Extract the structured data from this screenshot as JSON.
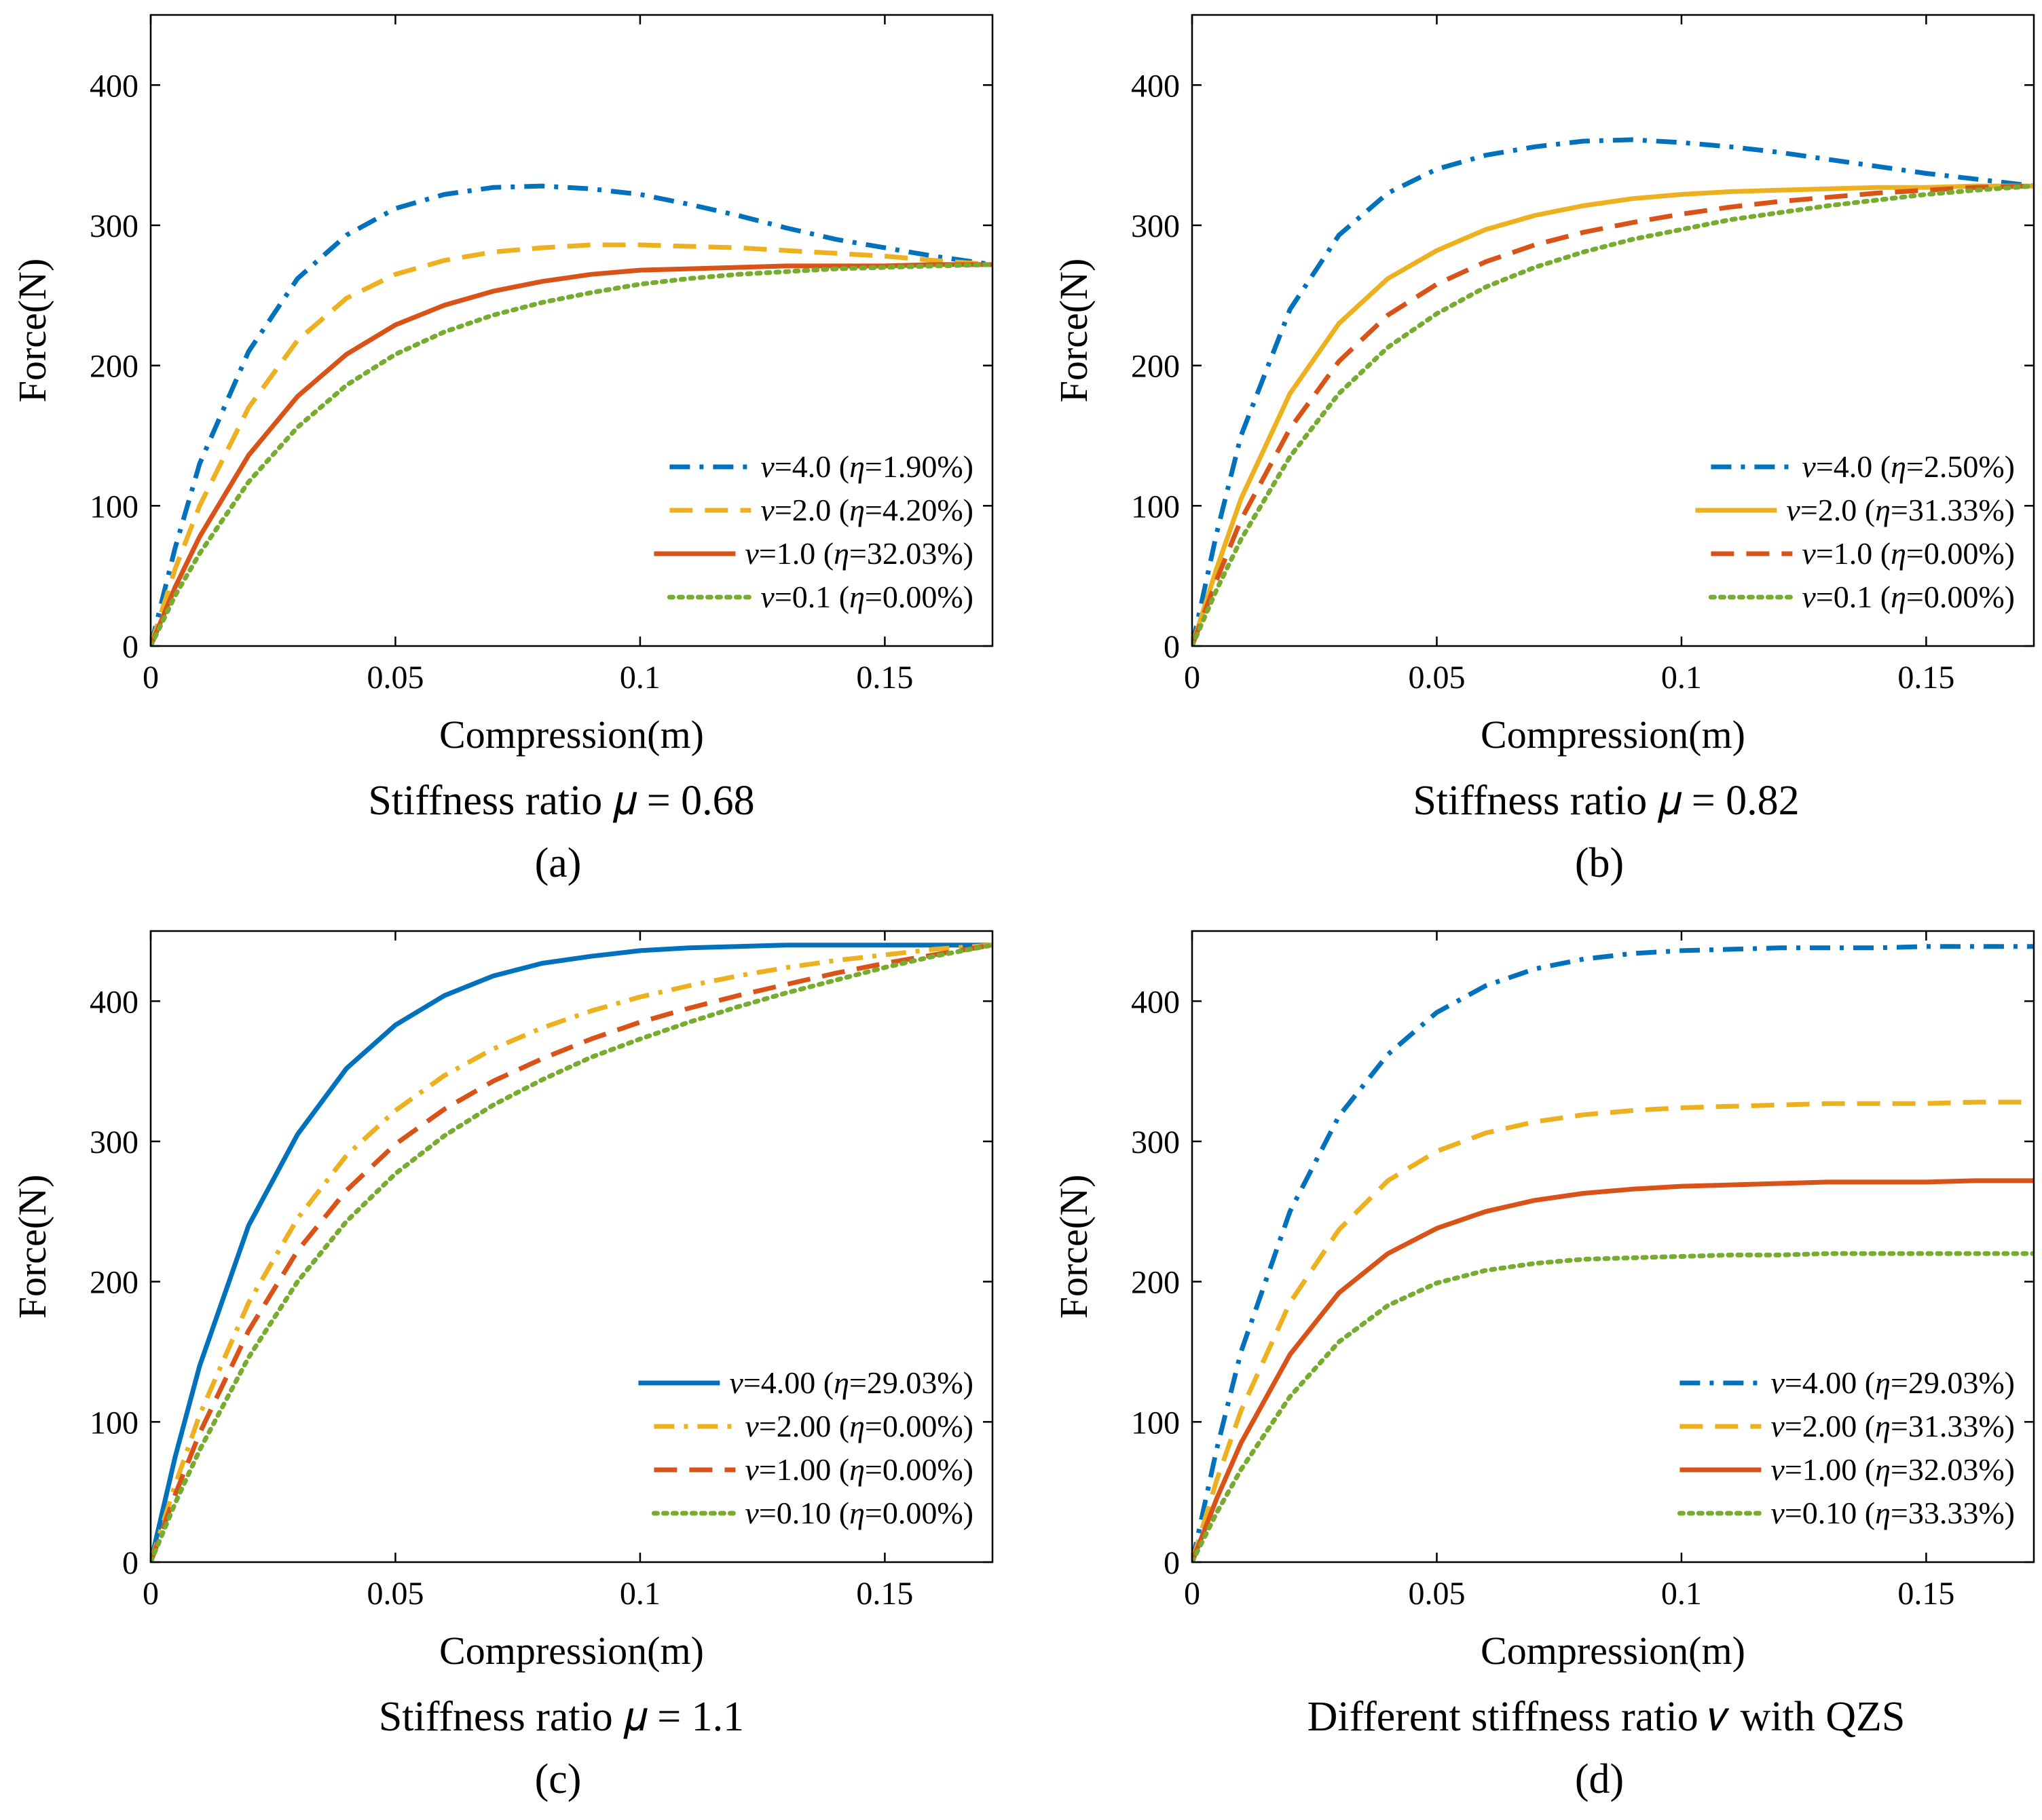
{
  "figure": {
    "axis_labels": {
      "x_prefix": "Compression(",
      "x_var": "m",
      "x_suffix": ")",
      "y_prefix": "Force(",
      "y_var": "N",
      "y_suffix": ")"
    }
  },
  "chart_data": [
    {
      "id": "a",
      "type": "line",
      "panel_label": "(a)",
      "caption": "Stiffness ratio 𝜇 = 0.68",
      "xlabel": "Compression(m)",
      "ylabel": "Force(N)",
      "xlim": [
        0,
        0.172
      ],
      "ylim": [
        0,
        450
      ],
      "xticks": [
        0,
        0.05,
        0.1,
        0.15
      ],
      "xtick_labels": [
        "0",
        "0.05",
        "0.1",
        "0.15"
      ],
      "yticks": [
        0,
        100,
        200,
        300,
        400
      ],
      "ytick_labels": [
        "0",
        "100",
        "200",
        "300",
        "400"
      ],
      "legend_position": "bottom-right",
      "series": [
        {
          "name": "ν=4.0 (η=1.90%)",
          "var": "ν",
          "val": "=4.0 (",
          "eta": "η",
          "eta_val": "=1.90%)",
          "color": "#0072BD",
          "style": "dashdot",
          "x": [
            0,
            0.005,
            0.01,
            0.02,
            0.03,
            0.04,
            0.05,
            0.06,
            0.07,
            0.08,
            0.09,
            0.1,
            0.11,
            0.12,
            0.13,
            0.14,
            0.15,
            0.16,
            0.172
          ],
          "y": [
            0,
            70,
            130,
            210,
            262,
            293,
            312,
            322,
            327,
            328,
            326,
            322,
            315,
            307,
            298,
            290,
            284,
            278,
            272
          ]
        },
        {
          "name": "ν=2.0 (η=4.20%)",
          "var": "ν",
          "val": "=2.0 (",
          "eta": "η",
          "eta_val": "=4.20%)",
          "color": "#EDB120",
          "style": "dashed",
          "x": [
            0,
            0.005,
            0.01,
            0.02,
            0.03,
            0.04,
            0.05,
            0.06,
            0.07,
            0.08,
            0.09,
            0.1,
            0.11,
            0.12,
            0.13,
            0.14,
            0.15,
            0.16,
            0.172
          ],
          "y": [
            0,
            55,
            100,
            170,
            218,
            248,
            265,
            275,
            281,
            284,
            286,
            286,
            285,
            284,
            282,
            280,
            278,
            275,
            272
          ]
        },
        {
          "name": "ν=1.0 (η=32.03%)",
          "var": "ν",
          "val": "=1.0 (",
          "eta": "η",
          "eta_val": "=32.03%)",
          "color": "#D95319",
          "style": "solid",
          "x": [
            0,
            0.005,
            0.01,
            0.02,
            0.03,
            0.04,
            0.05,
            0.06,
            0.07,
            0.08,
            0.09,
            0.1,
            0.11,
            0.12,
            0.13,
            0.14,
            0.15,
            0.16,
            0.172
          ],
          "y": [
            0,
            42,
            78,
            136,
            178,
            208,
            229,
            243,
            253,
            260,
            265,
            268,
            269,
            270,
            271,
            271,
            271,
            272,
            272
          ]
        },
        {
          "name": "ν=0.1 (η=0.00%)",
          "var": "ν",
          "val": "=0.1 (",
          "eta": "η",
          "eta_val": "=0.00%)",
          "color": "#77AC30",
          "style": "dotted",
          "x": [
            0,
            0.005,
            0.01,
            0.02,
            0.03,
            0.04,
            0.05,
            0.06,
            0.07,
            0.08,
            0.09,
            0.1,
            0.11,
            0.12,
            0.13,
            0.14,
            0.15,
            0.16,
            0.172
          ],
          "y": [
            0,
            36,
            66,
            117,
            156,
            186,
            208,
            224,
            236,
            245,
            252,
            258,
            262,
            265,
            267,
            269,
            270,
            271,
            272
          ]
        }
      ]
    },
    {
      "id": "b",
      "type": "line",
      "panel_label": "(b)",
      "caption": "Stiffness ratio 𝜇 = 0.82",
      "xlabel": "Compression(m)",
      "ylabel": "Force(N)",
      "xlim": [
        0,
        0.172
      ],
      "ylim": [
        0,
        450
      ],
      "xticks": [
        0,
        0.05,
        0.1,
        0.15
      ],
      "xtick_labels": [
        "0",
        "0.05",
        "0.1",
        "0.15"
      ],
      "yticks": [
        0,
        100,
        200,
        300,
        400
      ],
      "ytick_labels": [
        "0",
        "100",
        "200",
        "300",
        "400"
      ],
      "legend_position": "bottom-right",
      "series": [
        {
          "name": "ν=4.0 (η=2.50%)",
          "var": "ν",
          "val": "=4.0 (",
          "eta": "η",
          "eta_val": "=2.50%)",
          "color": "#0072BD",
          "style": "dashdot",
          "x": [
            0,
            0.005,
            0.01,
            0.02,
            0.03,
            0.04,
            0.05,
            0.06,
            0.07,
            0.08,
            0.09,
            0.1,
            0.11,
            0.12,
            0.13,
            0.14,
            0.15,
            0.16,
            0.172
          ],
          "y": [
            0,
            80,
            150,
            240,
            293,
            323,
            340,
            350,
            356,
            360,
            361,
            359,
            356,
            352,
            347,
            342,
            337,
            333,
            328
          ]
        },
        {
          "name": "ν=2.0 (η=31.33%)",
          "var": "ν",
          "val": "=2.0 (",
          "eta": "η",
          "eta_val": "=31.33%)",
          "color": "#EDB120",
          "style": "solid",
          "x": [
            0,
            0.005,
            0.01,
            0.02,
            0.03,
            0.04,
            0.05,
            0.06,
            0.07,
            0.08,
            0.09,
            0.1,
            0.11,
            0.12,
            0.13,
            0.14,
            0.15,
            0.16,
            0.172
          ],
          "y": [
            0,
            55,
            105,
            180,
            230,
            262,
            282,
            297,
            307,
            314,
            319,
            322,
            324,
            325,
            326,
            327,
            327,
            328,
            328
          ]
        },
        {
          "name": "ν=1.0 (η=0.00%)",
          "var": "ν",
          "val": "=1.0 (",
          "eta": "η",
          "eta_val": "=0.00%)",
          "color": "#D95319",
          "style": "dashed",
          "x": [
            0,
            0.005,
            0.01,
            0.02,
            0.03,
            0.04,
            0.05,
            0.06,
            0.07,
            0.08,
            0.09,
            0.1,
            0.11,
            0.12,
            0.13,
            0.14,
            0.15,
            0.16,
            0.172
          ],
          "y": [
            0,
            47,
            90,
            155,
            203,
            236,
            258,
            274,
            286,
            295,
            302,
            308,
            313,
            317,
            320,
            323,
            325,
            327,
            328
          ]
        },
        {
          "name": "ν=0.1 (η=0.00%)",
          "var": "ν",
          "val": "=0.1 (",
          "eta": "η",
          "eta_val": "=0.00%)",
          "color": "#77AC30",
          "style": "dotted",
          "x": [
            0,
            0.005,
            0.01,
            0.02,
            0.03,
            0.04,
            0.05,
            0.06,
            0.07,
            0.08,
            0.09,
            0.1,
            0.11,
            0.12,
            0.13,
            0.14,
            0.15,
            0.16,
            0.172
          ],
          "y": [
            0,
            40,
            76,
            135,
            180,
            213,
            237,
            256,
            270,
            281,
            290,
            297,
            304,
            309,
            314,
            318,
            322,
            325,
            328
          ]
        }
      ]
    },
    {
      "id": "c",
      "type": "line",
      "panel_label": "(c)",
      "caption": "Stiffness ratio 𝜇 = 1.1",
      "xlabel": "Compression(m)",
      "ylabel": "Force(N)",
      "xlim": [
        0,
        0.172
      ],
      "ylim": [
        0,
        450
      ],
      "xticks": [
        0,
        0.05,
        0.1,
        0.15
      ],
      "xtick_labels": [
        "0",
        "0.05",
        "0.1",
        "0.15"
      ],
      "yticks": [
        0,
        100,
        200,
        300,
        400
      ],
      "ytick_labels": [
        "0",
        "100",
        "200",
        "300",
        "400"
      ],
      "legend_position": "bottom-right",
      "series": [
        {
          "name": "ν=4.00 (η=29.03%)",
          "var": "ν",
          "val": "=4.00 (",
          "eta": "η",
          "eta_val": "=29.03%)",
          "color": "#0072BD",
          "style": "solid",
          "x": [
            0,
            0.005,
            0.01,
            0.02,
            0.03,
            0.04,
            0.05,
            0.06,
            0.07,
            0.08,
            0.09,
            0.1,
            0.11,
            0.12,
            0.13,
            0.14,
            0.15,
            0.16,
            0.172
          ],
          "y": [
            0,
            75,
            140,
            240,
            305,
            352,
            383,
            404,
            418,
            427,
            432,
            436,
            438,
            439,
            440,
            440,
            440,
            440,
            440
          ]
        },
        {
          "name": "ν=2.00 (η=0.00%)",
          "var": "ν",
          "val": "=2.00 (",
          "eta": "η",
          "eta_val": "=0.00%)",
          "color": "#EDB120",
          "style": "dashdot",
          "x": [
            0,
            0.005,
            0.01,
            0.02,
            0.03,
            0.04,
            0.05,
            0.06,
            0.07,
            0.08,
            0.09,
            0.1,
            0.11,
            0.12,
            0.13,
            0.14,
            0.15,
            0.16,
            0.172
          ],
          "y": [
            0,
            55,
            105,
            185,
            245,
            290,
            322,
            347,
            366,
            381,
            393,
            403,
            411,
            418,
            424,
            429,
            433,
            437,
            440
          ]
        },
        {
          "name": "ν=1.00 (η=0.00%)",
          "var": "ν",
          "val": "=1.00 (",
          "eta": "η",
          "eta_val": "=0.00%)",
          "color": "#D95319",
          "style": "dashed",
          "x": [
            0,
            0.005,
            0.01,
            0.02,
            0.03,
            0.04,
            0.05,
            0.06,
            0.07,
            0.08,
            0.09,
            0.1,
            0.11,
            0.12,
            0.13,
            0.14,
            0.15,
            0.16,
            0.172
          ],
          "y": [
            0,
            48,
            92,
            165,
            222,
            265,
            298,
            323,
            343,
            359,
            373,
            385,
            395,
            404,
            412,
            420,
            427,
            433,
            440
          ]
        },
        {
          "name": "ν=0.10 (η=0.00%)",
          "var": "ν",
          "val": "=0.10 (",
          "eta": "η",
          "eta_val": "=0.00%)",
          "color": "#77AC30",
          "style": "dotted",
          "x": [
            0,
            0.005,
            0.01,
            0.02,
            0.03,
            0.04,
            0.05,
            0.06,
            0.07,
            0.08,
            0.09,
            0.1,
            0.11,
            0.12,
            0.13,
            0.14,
            0.15,
            0.16,
            0.172
          ],
          "y": [
            0,
            42,
            80,
            146,
            200,
            243,
            277,
            304,
            326,
            344,
            360,
            373,
            385,
            396,
            406,
            415,
            424,
            432,
            440
          ]
        }
      ]
    },
    {
      "id": "d",
      "type": "line",
      "panel_label": "(d)",
      "caption": "Different stiffness ratio 𝜈 with QZS",
      "xlabel": "Compression(m)",
      "ylabel": "Force(N)",
      "xlim": [
        0,
        0.172
      ],
      "ylim": [
        0,
        450
      ],
      "xticks": [
        0,
        0.05,
        0.1,
        0.15
      ],
      "xtick_labels": [
        "0",
        "0.05",
        "0.1",
        "0.15"
      ],
      "yticks": [
        0,
        100,
        200,
        300,
        400
      ],
      "ytick_labels": [
        "0",
        "100",
        "200",
        "300",
        "400"
      ],
      "legend_position": "bottom-right",
      "series": [
        {
          "name": "ν=4.00 (η=29.03%)",
          "var": "ν",
          "val": "=4.00 (",
          "eta": "η",
          "eta_val": "=29.03%)",
          "color": "#0072BD",
          "style": "dashdot",
          "x": [
            0,
            0.005,
            0.01,
            0.02,
            0.03,
            0.04,
            0.05,
            0.06,
            0.07,
            0.08,
            0.09,
            0.1,
            0.11,
            0.12,
            0.13,
            0.14,
            0.15,
            0.16,
            0.172
          ],
          "y": [
            0,
            80,
            150,
            250,
            318,
            362,
            392,
            411,
            423,
            430,
            434,
            436,
            437,
            438,
            438,
            438,
            439,
            439,
            439
          ]
        },
        {
          "name": "ν=2.00 (η=31.33%)",
          "var": "ν",
          "val": "=2.00 (",
          "eta": "η",
          "eta_val": "=31.33%)",
          "color": "#EDB120",
          "style": "dashed",
          "x": [
            0,
            0.005,
            0.01,
            0.02,
            0.03,
            0.04,
            0.05,
            0.06,
            0.07,
            0.08,
            0.09,
            0.1,
            0.11,
            0.12,
            0.13,
            0.14,
            0.15,
            0.16,
            0.172
          ],
          "y": [
            0,
            58,
            108,
            185,
            237,
            272,
            293,
            306,
            314,
            319,
            322,
            324,
            325,
            326,
            327,
            327,
            327,
            328,
            328
          ]
        },
        {
          "name": "ν=1.00 (η=32.03%)",
          "var": "ν",
          "val": "=1.00 (",
          "eta": "η",
          "eta_val": "=32.03%)",
          "color": "#D95319",
          "style": "solid",
          "x": [
            0,
            0.005,
            0.01,
            0.02,
            0.03,
            0.04,
            0.05,
            0.06,
            0.07,
            0.08,
            0.09,
            0.1,
            0.11,
            0.12,
            0.13,
            0.14,
            0.15,
            0.16,
            0.172
          ],
          "y": [
            0,
            45,
            85,
            148,
            192,
            220,
            238,
            250,
            258,
            263,
            266,
            268,
            269,
            270,
            271,
            271,
            271,
            272,
            272
          ]
        },
        {
          "name": "ν=0.10 (η=33.33%)",
          "var": "ν",
          "val": "=0.10 (",
          "eta": "η",
          "eta_val": "=33.33%)",
          "color": "#77AC30",
          "style": "dotted",
          "x": [
            0,
            0.005,
            0.01,
            0.02,
            0.03,
            0.04,
            0.05,
            0.06,
            0.07,
            0.08,
            0.09,
            0.1,
            0.11,
            0.12,
            0.13,
            0.14,
            0.15,
            0.16,
            0.172
          ],
          "y": [
            0,
            35,
            66,
            118,
            157,
            183,
            199,
            208,
            213,
            216,
            217,
            218,
            219,
            219,
            220,
            220,
            220,
            220,
            220
          ]
        }
      ]
    }
  ]
}
